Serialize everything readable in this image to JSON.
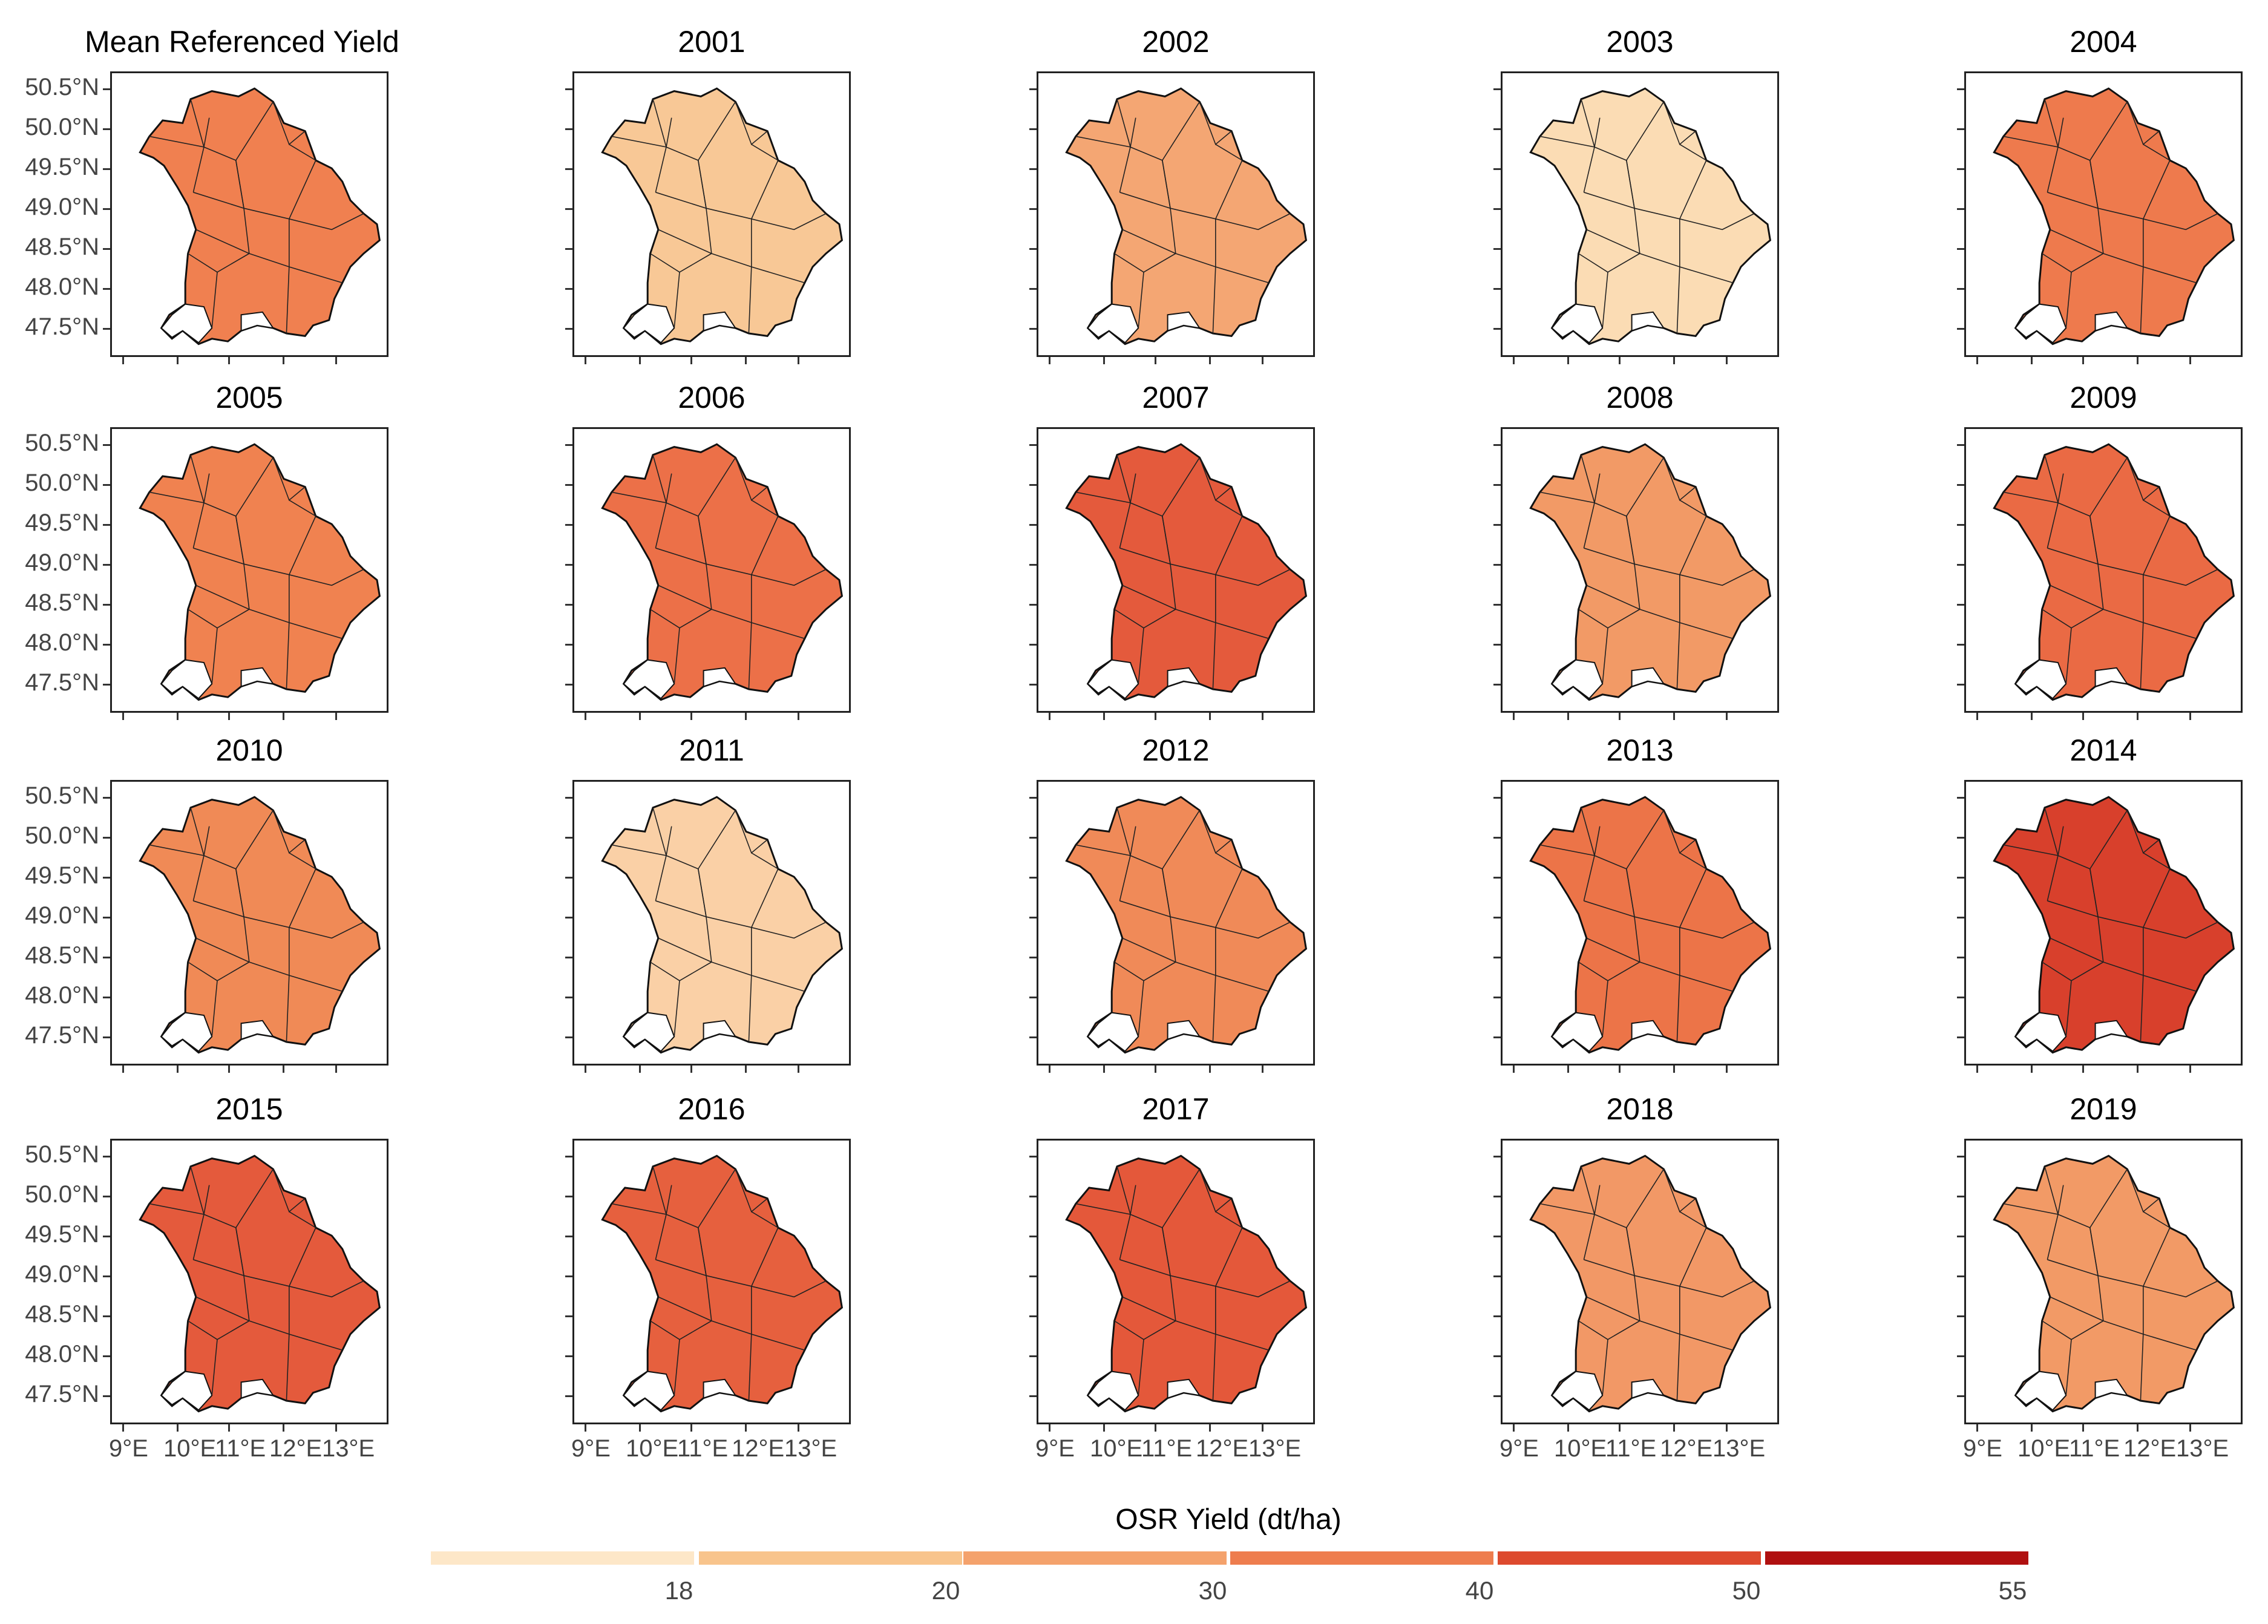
{
  "chart_data": {
    "type": "map",
    "region": "Bavaria",
    "panels": [
      {
        "title": "Mean Referenced Yield",
        "fill": "#f08050"
      },
      {
        "title": "2001",
        "fill": "#f8c896"
      },
      {
        "title": "2002",
        "fill": "#f4a673"
      },
      {
        "title": "2003",
        "fill": "#fbdcb4"
      },
      {
        "title": "2004",
        "fill": "#ee7a4d"
      },
      {
        "title": "2005",
        "fill": "#f08250"
      },
      {
        "title": "2006",
        "fill": "#ec7048"
      },
      {
        "title": "2007",
        "fill": "#e45a3c"
      },
      {
        "title": "2008",
        "fill": "#f29a66"
      },
      {
        "title": "2009",
        "fill": "#ea6a44"
      },
      {
        "title": "2010",
        "fill": "#f08a56"
      },
      {
        "title": "2011",
        "fill": "#fad0a6"
      },
      {
        "title": "2012",
        "fill": "#f08a58"
      },
      {
        "title": "2013",
        "fill": "#ec7448"
      },
      {
        "title": "2014",
        "fill": "#d8402c"
      },
      {
        "title": "2015",
        "fill": "#e45a3c"
      },
      {
        "title": "2016",
        "fill": "#e6603e"
      },
      {
        "title": "2017",
        "fill": "#e4583a"
      },
      {
        "title": "2018",
        "fill": "#f29866"
      },
      {
        "title": "2019",
        "fill": "#f29a66"
      }
    ],
    "y_ticks": [
      "50.5°N",
      "50.0°N",
      "49.5°N",
      "49.0°N",
      "48.5°N",
      "48.0°N",
      "47.5°N"
    ],
    "x_ticks": [
      "9°E",
      "10°E",
      "11°E",
      "12°E",
      "13°E"
    ],
    "legend": {
      "title": "OSR Yield (dt/ha)",
      "colors": [
        "#fde7c8",
        "#f8c48c",
        "#f4a26c",
        "#ee7d4e",
        "#dd4a2e",
        "#b01010"
      ],
      "labels": [
        "18",
        "20",
        "30",
        "40",
        "50",
        "55"
      ]
    }
  }
}
